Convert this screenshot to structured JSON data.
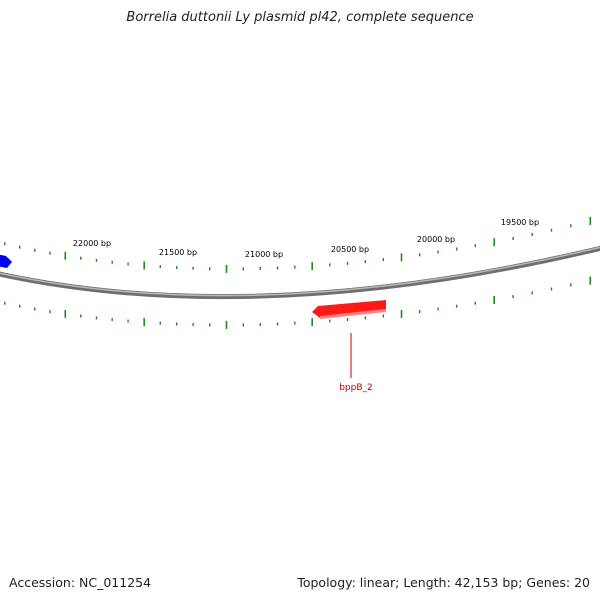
{
  "title": "Borrelia duttonii Ly plasmid pl42, complete sequence",
  "accession_label": "Accession: NC_011254",
  "summary_label": "Topology: linear; Length: 42,153 bp; Genes: 20",
  "colors": {
    "backbone": "#8a8a8a",
    "tick": "#1d8a1d",
    "gene_forward": "#0000ee",
    "gene_reverse": "#ff0000",
    "gene_label": "#c00000"
  },
  "sequence_ticks": [
    {
      "label": "22000 bp"
    },
    {
      "label": "21500 bp"
    },
    {
      "label": "21000 bp"
    },
    {
      "label": "20500 bp"
    },
    {
      "label": "20000 bp"
    },
    {
      "label": "19500 bp"
    }
  ],
  "genes": [
    {
      "name": "bppB_2",
      "strand": "reverse",
      "labeled": true
    },
    {
      "name": "",
      "strand": "forward",
      "labeled": false
    }
  ]
}
